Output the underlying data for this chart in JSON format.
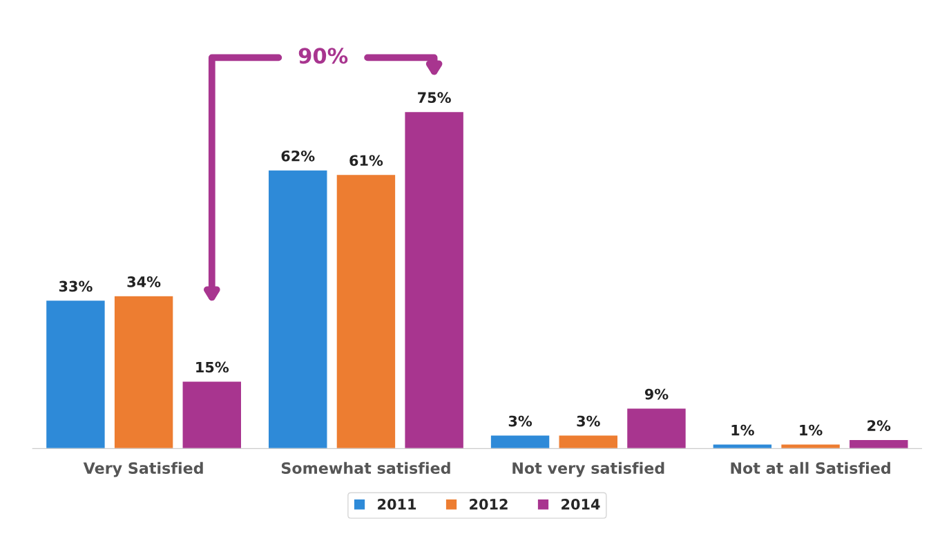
{
  "chart_data": {
    "type": "bar",
    "categories": [
      "Very Satisfied",
      "Somewhat satisfied",
      "Not very satisfied",
      "Not at all Satisfied"
    ],
    "series": [
      {
        "name": "2011",
        "color": "#2e8ad8",
        "values": [
          33,
          62,
          3,
          1
        ],
        "value_labels": [
          "33%",
          "62%",
          "3%",
          "1%"
        ]
      },
      {
        "name": "2012",
        "color": "#ed7d31",
        "values": [
          34,
          61,
          3,
          1
        ],
        "value_labels": [
          "34%",
          "61%",
          "3%",
          "1%"
        ]
      },
      {
        "name": "2014",
        "color": "#a8358f",
        "values": [
          15,
          75,
          9,
          2
        ],
        "value_labels": [
          "15%",
          "75%",
          "9%",
          "2%"
        ]
      }
    ],
    "annotations": [
      "90%"
    ],
    "legend": "bottom",
    "grid": false
  }
}
